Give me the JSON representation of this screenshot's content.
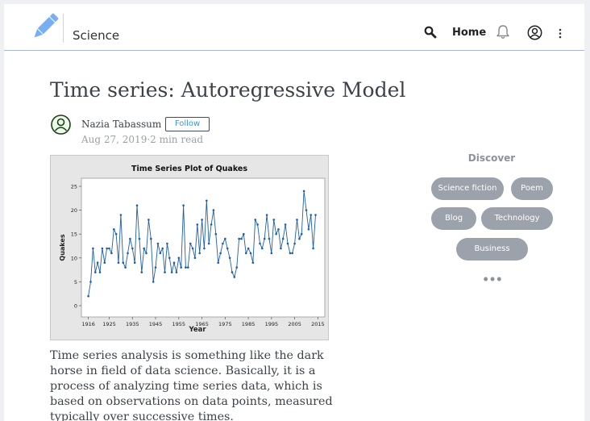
{
  "header": {
    "logo": "pencil-icon",
    "brand": "Science",
    "home_label": "Home",
    "icons": [
      "search-icon",
      "bell-icon",
      "account-icon",
      "more-vertical-icon"
    ]
  },
  "article": {
    "title": "Time series: Autoregressive Model",
    "author": "Nazia Tabassum",
    "follow_label": "Follow",
    "meta": "Aug 27, 2019·2 min read",
    "body": "Time series analysis is something like the dark horse in field of data science. Basically, it is a process of analyzing time series data, which is based on observations on data points, measured typically over successive times."
  },
  "chart_data": {
    "type": "line",
    "title": "Time Series Plot of Quakes",
    "xlabel": "Year",
    "ylabel": "Quakes",
    "x_ticks": [
      "1916",
      "1925",
      "1935",
      "1945",
      "1955",
      "1965",
      "1975",
      "1985",
      "1995",
      "2005",
      "2015"
    ],
    "y_ticks": [
      0,
      5,
      10,
      15,
      20,
      25
    ],
    "ylim": [
      0,
      25
    ],
    "xlim": [
      1913,
      2018
    ],
    "x_start": 1916,
    "values": [
      2,
      5,
      12,
      7,
      9,
      7,
      12,
      9,
      12,
      12,
      11,
      16,
      15,
      9,
      19,
      9,
      8,
      11,
      14,
      12,
      9,
      21,
      14,
      7,
      12,
      11,
      18,
      14,
      5,
      8,
      13,
      11,
      12,
      7,
      13,
      10,
      7,
      9,
      7,
      10,
      8,
      21,
      8,
      8,
      13,
      12,
      10,
      17,
      11,
      18,
      12,
      22,
      13,
      17,
      20,
      15,
      9,
      11,
      13,
      14,
      12,
      10,
      7,
      6,
      8,
      14,
      14,
      15,
      11,
      12,
      11,
      9,
      18,
      17,
      13,
      12,
      14,
      19,
      14,
      11,
      18,
      15,
      16,
      12,
      14,
      17,
      13,
      11,
      11,
      13,
      18,
      14,
      15,
      24,
      20,
      16,
      19,
      12,
      19
    ],
    "line_color": "#1f5fa8",
    "background": "#e6e6e6",
    "plot_background": "#ffffff"
  },
  "sidebar": {
    "heading": "Discover",
    "tags": [
      "Science fiction",
      "Poem",
      "Blog",
      "Technology",
      "Business"
    ],
    "more": "•••"
  }
}
